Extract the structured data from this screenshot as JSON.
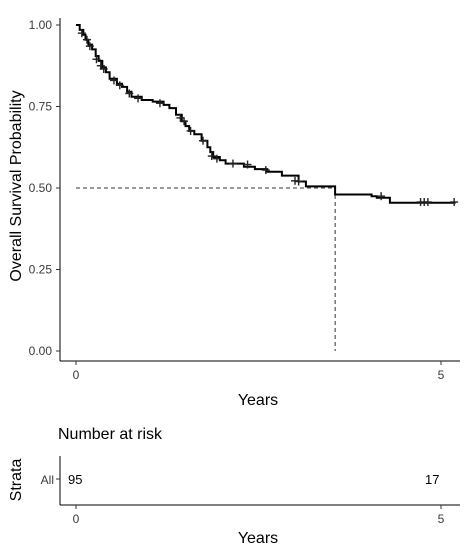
{
  "chart_data": [
    {
      "type": "line",
      "subtype": "kaplan-meier",
      "xlabel": "Years",
      "ylabel": "Overall Survival Probability",
      "xlim": [
        0,
        5.2
      ],
      "ylim": [
        0,
        1
      ],
      "x_ticks": [
        0,
        5
      ],
      "y_ticks": [
        "0.00",
        "0.25",
        "0.50",
        "0.75",
        "1.00"
      ],
      "grid": false,
      "line_color": "#000000",
      "step_curve": [
        [
          0.0,
          1.0
        ],
        [
          0.05,
          0.985
        ],
        [
          0.1,
          0.97
        ],
        [
          0.13,
          0.955
        ],
        [
          0.17,
          0.94
        ],
        [
          0.22,
          0.925
        ],
        [
          0.27,
          0.905
        ],
        [
          0.31,
          0.89
        ],
        [
          0.36,
          0.87
        ],
        [
          0.41,
          0.855
        ],
        [
          0.46,
          0.835
        ],
        [
          0.56,
          0.82
        ],
        [
          0.63,
          0.81
        ],
        [
          0.7,
          0.795
        ],
        [
          0.76,
          0.78
        ],
        [
          0.9,
          0.77
        ],
        [
          1.05,
          0.765
        ],
        [
          1.2,
          0.755
        ],
        [
          1.28,
          0.745
        ],
        [
          1.37,
          0.725
        ],
        [
          1.45,
          0.705
        ],
        [
          1.5,
          0.69
        ],
        [
          1.55,
          0.675
        ],
        [
          1.62,
          0.665
        ],
        [
          1.72,
          0.645
        ],
        [
          1.8,
          0.625
        ],
        [
          1.84,
          0.61
        ],
        [
          1.88,
          0.595
        ],
        [
          1.97,
          0.585
        ],
        [
          2.05,
          0.575
        ],
        [
          2.3,
          0.565
        ],
        [
          2.45,
          0.558
        ],
        [
          2.62,
          0.55
        ],
        [
          2.82,
          0.538
        ],
        [
          3.05,
          0.52
        ],
        [
          3.15,
          0.505
        ],
        [
          3.55,
          0.48
        ],
        [
          4.05,
          0.475
        ],
        [
          4.05,
          0.475
        ],
        [
          4.12,
          0.47
        ],
        [
          4.3,
          0.455
        ],
        [
          5.2,
          0.455
        ]
      ],
      "censor_points": [
        [
          0.08,
          0.975
        ],
        [
          0.15,
          0.955
        ],
        [
          0.19,
          0.935
        ],
        [
          0.28,
          0.895
        ],
        [
          0.34,
          0.875
        ],
        [
          0.38,
          0.865
        ],
        [
          0.52,
          0.83
        ],
        [
          0.6,
          0.815
        ],
        [
          0.73,
          0.79
        ],
        [
          0.85,
          0.775
        ],
        [
          1.15,
          0.76
        ],
        [
          1.43,
          0.715
        ],
        [
          1.48,
          0.705
        ],
        [
          1.57,
          0.675
        ],
        [
          1.74,
          0.645
        ],
        [
          1.86,
          0.598
        ],
        [
          1.93,
          0.59
        ],
        [
          2.15,
          0.575
        ],
        [
          2.35,
          0.572
        ],
        [
          2.6,
          0.555
        ],
        [
          3.0,
          0.522
        ],
        [
          3.05,
          0.52
        ],
        [
          4.18,
          0.475
        ],
        [
          4.72,
          0.457
        ],
        [
          4.77,
          0.457
        ],
        [
          4.82,
          0.457
        ],
        [
          5.18,
          0.457
        ]
      ],
      "median_line": {
        "y": 0.5,
        "x": 3.55
      }
    },
    {
      "type": "table",
      "title": "Number at risk",
      "ylabel": "Strata",
      "xlabel": "Years",
      "strata": [
        "All"
      ],
      "x_ticks": [
        0,
        5
      ],
      "values": [
        {
          "x": 0,
          "n": "95"
        },
        {
          "x": 5,
          "n": "17"
        }
      ]
    }
  ]
}
